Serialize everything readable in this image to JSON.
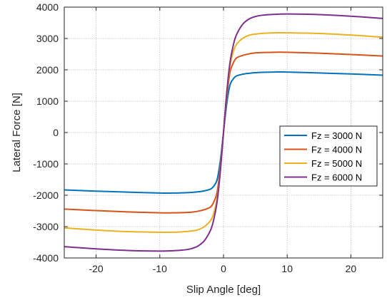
{
  "chart_data": {
    "type": "line",
    "title": "",
    "xlabel": "Slip Angle [deg]",
    "ylabel": "Lateral Force [N]",
    "xlim": [
      -25,
      25
    ],
    "ylim": [
      -4000,
      4000
    ],
    "xticks": [
      -20,
      -10,
      0,
      10,
      20
    ],
    "yticks": [
      -4000,
      -3000,
      -2000,
      -1000,
      0,
      1000,
      2000,
      3000,
      4000
    ],
    "grid": true,
    "legend": {
      "placement": "right"
    },
    "series": [
      {
        "name": "Fz = 3000 N",
        "color": "#0072BD",
        "x": [
          -25,
          -20,
          -15,
          -10,
          -8,
          -6,
          -5,
          -4,
          -3,
          -2,
          -1.5,
          -1,
          -0.5,
          0,
          0.5,
          1,
          1.5,
          2,
          3,
          4,
          5,
          6,
          8,
          10,
          15,
          20,
          25
        ],
        "y": [
          -1830,
          -1870,
          -1900,
          -1930,
          -1930,
          -1920,
          -1910,
          -1890,
          -1860,
          -1800,
          -1700,
          -1500,
          -900,
          0,
          900,
          1500,
          1700,
          1800,
          1860,
          1890,
          1910,
          1920,
          1930,
          1930,
          1900,
          1870,
          1830
        ]
      },
      {
        "name": "Fz = 4000 N",
        "color": "#D95319",
        "x": [
          -25,
          -20,
          -15,
          -10,
          -8,
          -6,
          -5,
          -4,
          -3,
          -2,
          -1.5,
          -1,
          -0.5,
          0,
          0.5,
          1,
          1.5,
          2,
          3,
          4,
          5,
          6,
          8,
          10,
          15,
          20,
          25
        ],
        "y": [
          -2440,
          -2490,
          -2530,
          -2560,
          -2560,
          -2550,
          -2540,
          -2510,
          -2460,
          -2370,
          -2200,
          -1900,
          -1100,
          0,
          1100,
          1900,
          2200,
          2370,
          2460,
          2510,
          2540,
          2550,
          2560,
          2560,
          2530,
          2490,
          2440
        ]
      },
      {
        "name": "Fz = 5000 N",
        "color": "#EDB120",
        "x": [
          -25,
          -20,
          -15,
          -10,
          -8,
          -6,
          -5,
          -4,
          -3,
          -2,
          -1.5,
          -1,
          -0.5,
          0,
          0.5,
          1,
          1.5,
          2,
          3,
          4,
          5,
          6,
          8,
          10,
          15,
          20,
          25
        ],
        "y": [
          -3040,
          -3110,
          -3160,
          -3180,
          -3180,
          -3160,
          -3140,
          -3100,
          -3000,
          -2800,
          -2550,
          -2100,
          -1200,
          0,
          1200,
          2100,
          2550,
          2800,
          3000,
          3100,
          3140,
          3160,
          3180,
          3180,
          3160,
          3110,
          3040
        ]
      },
      {
        "name": "Fz = 6000 N",
        "color": "#7E2F8E",
        "x": [
          -25,
          -20,
          -15,
          -10,
          -8,
          -6,
          -5,
          -4,
          -3,
          -2,
          -1.5,
          -1,
          -0.5,
          0,
          0.5,
          1,
          1.5,
          2,
          3,
          4,
          5,
          6,
          8,
          10,
          15,
          20,
          25
        ],
        "y": [
          -3640,
          -3710,
          -3760,
          -3780,
          -3770,
          -3740,
          -3700,
          -3620,
          -3450,
          -3100,
          -2750,
          -2200,
          -1250,
          0,
          1250,
          2200,
          2750,
          3100,
          3450,
          3620,
          3700,
          3740,
          3770,
          3780,
          3760,
          3710,
          3640
        ]
      }
    ]
  }
}
